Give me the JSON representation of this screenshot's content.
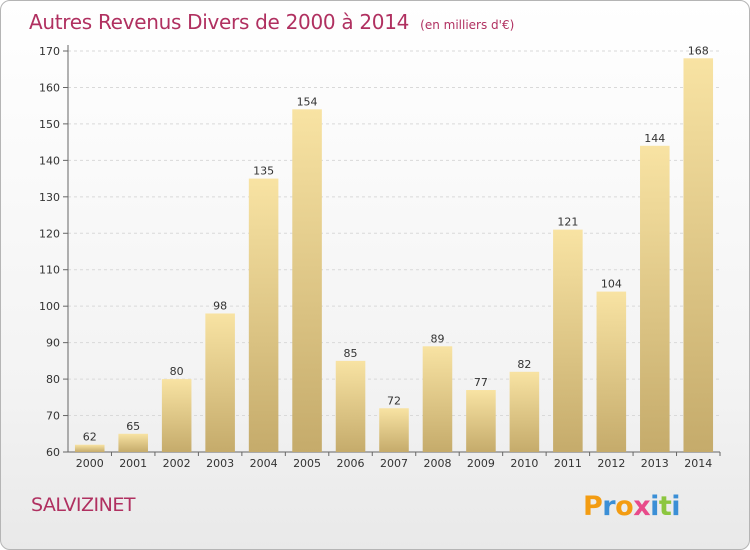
{
  "title": "Autres Revenus Divers de 2000 à 2014",
  "subtitle": "(en milliers d'€)",
  "commune": "SALVIZINET",
  "logo": {
    "text": "Proxiti",
    "letter_colors": [
      "#f39c12",
      "#3b8fd6",
      "#f39c12",
      "#e84b8a",
      "#3b8fd6",
      "#8cc63f",
      "#3b8fd6"
    ]
  },
  "colors": {
    "title": "#b03060",
    "bar_light": "#f8e3a3",
    "bar_dark": "#c5ab6b",
    "grid": "#d9d9d9"
  },
  "chart_data": {
    "type": "bar",
    "categories": [
      "2000",
      "2001",
      "2002",
      "2003",
      "2004",
      "2005",
      "2006",
      "2007",
      "2008",
      "2009",
      "2010",
      "2011",
      "2012",
      "2013",
      "2014"
    ],
    "values": [
      62,
      65,
      80,
      98,
      135,
      154,
      85,
      72,
      89,
      77,
      82,
      121,
      104,
      144,
      168
    ],
    "ylim": [
      60,
      170
    ],
    "yticks": [
      60,
      70,
      80,
      90,
      100,
      110,
      120,
      130,
      140,
      150,
      160,
      170
    ],
    "grid": true,
    "xlabel": "",
    "ylabel": ""
  }
}
